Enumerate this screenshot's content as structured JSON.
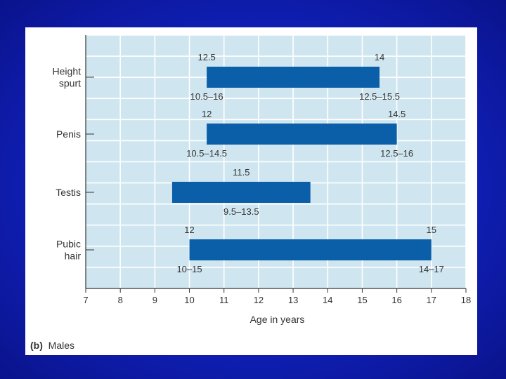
{
  "slide": {
    "background_color": "#1422c4",
    "caption_letter": "(b)",
    "caption_text": "Males"
  },
  "chart_data": {
    "type": "bar",
    "orientation": "horizontal-range",
    "title": "",
    "xlabel": "Age in years",
    "ylabel": "",
    "xlim": [
      7,
      18
    ],
    "xticks": [
      7,
      8,
      9,
      10,
      11,
      12,
      13,
      14,
      15,
      16,
      17,
      18
    ],
    "grid": true,
    "categories": [
      {
        "label_lines": [
          "Height",
          "spurt"
        ],
        "start": 10.5,
        "end": 15.5,
        "start_label": "12.5",
        "end_label": "14",
        "start_range": "10.5–16",
        "end_range": "12.5–15.5"
      },
      {
        "label_lines": [
          "Penis"
        ],
        "start": 10.5,
        "end": 16,
        "start_label": "12",
        "end_label": "14.5",
        "start_range": "10.5–14.5",
        "end_range": "12.5–16"
      },
      {
        "label_lines": [
          "Testis"
        ],
        "start": 9.5,
        "end": 13.5,
        "center_label": "11.5",
        "center_range": "9.5–13.5"
      },
      {
        "label_lines": [
          "Pubic",
          "hair"
        ],
        "start": 10,
        "end": 17,
        "start_label": "12",
        "end_label": "15",
        "start_range": "10–15",
        "end_range": "14–17"
      }
    ],
    "colors": {
      "plot_bg": "#cfe6f0",
      "grid": "#ffffff",
      "bar": "#0a5fa8",
      "axis": "#333333"
    }
  }
}
